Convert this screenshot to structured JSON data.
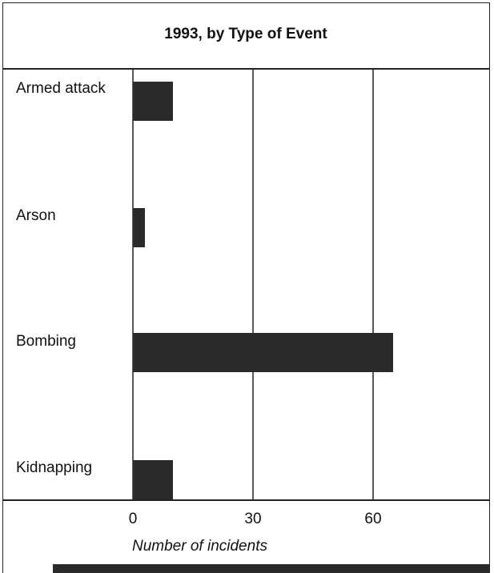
{
  "chart_data": {
    "type": "bar",
    "orientation": "horizontal",
    "title": "1993, by Type of Event",
    "xlabel": "Number of incidents",
    "categories": [
      "Armed attack",
      "Arson",
      "Bombing",
      "Kidnapping"
    ],
    "values": [
      10,
      3,
      65,
      10
    ],
    "xlim": [
      0,
      89
    ],
    "xticks": [
      "0",
      "30",
      "60"
    ],
    "xtick_values": [
      0,
      30,
      60
    ],
    "grid": true,
    "bar_color": "#2a2a2a"
  }
}
